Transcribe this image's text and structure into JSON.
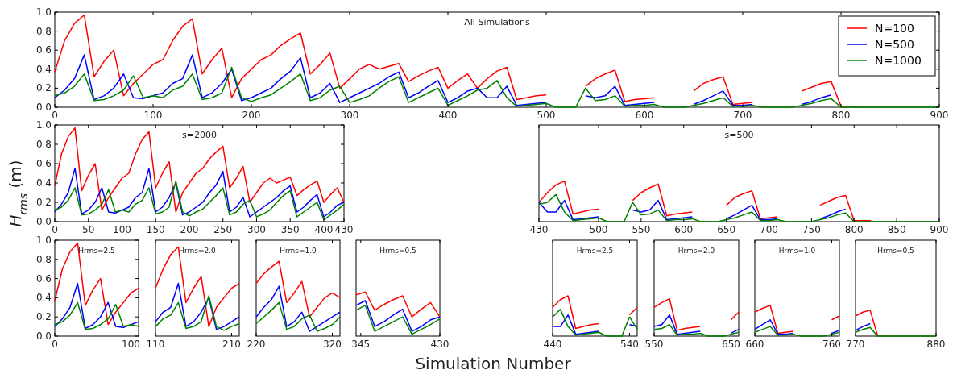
{
  "chart_data": [
    {
      "type": "line",
      "title": "All Simulations",
      "legend": "top right",
      "xlim": [
        0,
        900
      ],
      "ylim": [
        0,
        1
      ],
      "xticks": [
        0,
        100,
        200,
        300,
        400,
        500,
        600,
        700,
        800,
        900
      ],
      "yticks": [
        {
          "value": 0,
          "label": "0.0"
        },
        {
          "value": 0.2,
          "label": "0.2"
        },
        {
          "value": 0.4,
          "label": "0.4"
        },
        {
          "value": 0.6,
          "label": "0.6"
        },
        {
          "value": 0.8,
          "label": "0.8"
        },
        {
          "value": 1,
          "label": "1.0"
        }
      ],
      "x": [
        0,
        10,
        20,
        30,
        40,
        50,
        60,
        70,
        80,
        90,
        100,
        110,
        120,
        130,
        140,
        150,
        160,
        170,
        180,
        190,
        200,
        210,
        220,
        230,
        240,
        250,
        260,
        270,
        280,
        290,
        300,
        310,
        320,
        330,
        340,
        350,
        360,
        370,
        380,
        390,
        400,
        410,
        420,
        430,
        440,
        450,
        460,
        470,
        480,
        490,
        500,
        510,
        520,
        530,
        540,
        550,
        560,
        570,
        580,
        590,
        600,
        610,
        620,
        630,
        640,
        650,
        660,
        670,
        680,
        690,
        700,
        710,
        720,
        730,
        740,
        750,
        760,
        770,
        780,
        790,
        800,
        810,
        820,
        830,
        840,
        850,
        860,
        870,
        880,
        890,
        900
      ],
      "series": [
        {
          "name": "N=100",
          "color": "#ff0000",
          "values": [
            0.37,
            0.7,
            0.88,
            0.97,
            0.32,
            0.48,
            0.6,
            0.12,
            0.25,
            0.35,
            0.45,
            0.5,
            0.7,
            0.85,
            0.93,
            0.35,
            0.5,
            0.62,
            0.1,
            0.3,
            0.4,
            0.5,
            0.55,
            0.65,
            0.72,
            0.78,
            0.35,
            0.45,
            0.57,
            0.2,
            0.3,
            0.4,
            0.45,
            0.4,
            0.43,
            0.46,
            0.27,
            0.33,
            0.38,
            0.42,
            0.2,
            0.28,
            0.35,
            0.2,
            0.3,
            0.38,
            0.42,
            0.08,
            0.1,
            0.12,
            0.13,
            null,
            null,
            null,
            0.22,
            0.3,
            0.35,
            0.39,
            0.06,
            0.08,
            0.09,
            0.1,
            null,
            null,
            null,
            0.17,
            0.25,
            0.29,
            0.32,
            0.03,
            0.04,
            0.05,
            null,
            null,
            null,
            null,
            0.17,
            0.21,
            0.25,
            0.27,
            0.01,
            0.01,
            0.01,
            null,
            null,
            null,
            null,
            null,
            null,
            null,
            null
          ]
        },
        {
          "name": "N=500",
          "color": "#0000ff",
          "values": [
            0.1,
            0.18,
            0.3,
            0.55,
            0.08,
            0.12,
            0.2,
            0.35,
            0.1,
            0.09,
            0.12,
            0.15,
            0.25,
            0.3,
            0.55,
            0.1,
            0.15,
            0.25,
            0.4,
            0.07,
            0.1,
            0.15,
            0.2,
            0.3,
            0.38,
            0.52,
            0.1,
            0.15,
            0.25,
            0.05,
            0.1,
            0.15,
            0.2,
            0.25,
            0.32,
            0.37,
            0.1,
            0.15,
            0.22,
            0.28,
            0.05,
            0.1,
            0.17,
            0.2,
            0.1,
            0.1,
            0.22,
            0.02,
            0.03,
            0.04,
            0.05,
            null,
            null,
            null,
            0.12,
            0.1,
            0.12,
            0.22,
            0.02,
            0.03,
            0.04,
            0.05,
            null,
            null,
            null,
            0.03,
            0.07,
            0.12,
            0.17,
            0.02,
            0.02,
            0.03,
            null,
            null,
            null,
            null,
            0.03,
            0.06,
            0.1,
            0.13,
            null,
            null,
            null,
            null,
            null,
            null,
            null,
            null,
            null,
            null,
            null
          ]
        },
        {
          "name": "N=1000",
          "color": "#008000",
          "values": [
            0.12,
            0.15,
            0.22,
            0.35,
            0.07,
            0.08,
            0.12,
            0.18,
            0.33,
            0.1,
            0.12,
            0.1,
            0.18,
            0.22,
            0.35,
            0.08,
            0.1,
            0.15,
            0.42,
            0.1,
            0.06,
            0.1,
            0.13,
            0.2,
            0.27,
            0.35,
            0.07,
            0.1,
            0.18,
            0.22,
            0.05,
            0.08,
            0.12,
            0.2,
            0.27,
            0.32,
            0.05,
            0.1,
            0.15,
            0.2,
            0.02,
            0.07,
            0.12,
            0.18,
            0.2,
            0.28,
            0.1,
            0.01,
            0.02,
            0.03,
            0.04,
            0,
            0,
            0,
            0.2,
            0.07,
            0.08,
            0.12,
            0.01,
            0.02,
            0.02,
            0.03,
            0,
            0,
            0,
            0.02,
            0.04,
            0.07,
            0.1,
            0.01,
            0.01,
            0.02,
            0,
            0,
            0,
            0,
            0.02,
            0.04,
            0.07,
            0.09,
            0,
            0,
            0,
            0,
            0,
            0,
            0,
            0,
            0,
            0,
            0
          ]
        }
      ]
    },
    {
      "type": "line",
      "title": "s=2000",
      "ylabel": "H$_{rms}$ (m)",
      "xlim": [
        0,
        430
      ],
      "ylim": [
        0,
        1
      ],
      "xticks": [
        0,
        50,
        100,
        150,
        200,
        250,
        300,
        350,
        400,
        430
      ],
      "yticks": [
        {
          "value": 0,
          "label": "0.0"
        },
        {
          "value": 0.2,
          "label": "0.2"
        },
        {
          "value": 0.4,
          "label": "0.4"
        },
        {
          "value": 0.6,
          "label": "0.6"
        },
        {
          "value": 0.8,
          "label": "0.8"
        },
        {
          "value": 1,
          "label": "1.0"
        }
      ],
      "x": [
        0,
        10,
        20,
        30,
        40,
        50,
        60,
        70,
        80,
        90,
        100,
        110,
        120,
        130,
        140,
        150,
        160,
        170,
        180,
        190,
        200,
        210,
        220,
        230,
        240,
        250,
        260,
        270,
        280,
        290,
        300,
        310,
        320,
        330,
        340,
        350,
        360,
        370,
        380,
        390,
        400,
        410,
        420,
        430
      ],
      "series": [
        {
          "color": "#ff0000",
          "values": [
            0.37,
            0.7,
            0.88,
            0.97,
            0.32,
            0.48,
            0.6,
            0.12,
            0.25,
            0.35,
            0.45,
            0.5,
            0.7,
            0.85,
            0.93,
            0.35,
            0.5,
            0.62,
            0.1,
            0.3,
            0.4,
            0.5,
            0.55,
            0.65,
            0.72,
            0.78,
            0.35,
            0.45,
            0.57,
            0.2,
            0.3,
            0.4,
            0.45,
            0.4,
            0.43,
            0.46,
            0.27,
            0.33,
            0.38,
            0.42,
            0.2,
            0.28,
            0.35,
            0.2
          ]
        },
        {
          "color": "#0000ff",
          "values": [
            0.1,
            0.18,
            0.3,
            0.55,
            0.08,
            0.12,
            0.2,
            0.35,
            0.1,
            0.09,
            0.12,
            0.15,
            0.25,
            0.3,
            0.55,
            0.1,
            0.15,
            0.25,
            0.4,
            0.07,
            0.1,
            0.15,
            0.2,
            0.3,
            0.38,
            0.52,
            0.1,
            0.15,
            0.25,
            0.05,
            0.1,
            0.15,
            0.2,
            0.25,
            0.32,
            0.37,
            0.1,
            0.15,
            0.22,
            0.28,
            0.05,
            0.1,
            0.17,
            0.2
          ]
        },
        {
          "color": "#008000",
          "values": [
            0.12,
            0.15,
            0.22,
            0.35,
            0.07,
            0.08,
            0.12,
            0.18,
            0.33,
            0.1,
            0.12,
            0.1,
            0.18,
            0.22,
            0.35,
            0.08,
            0.1,
            0.15,
            0.42,
            0.1,
            0.06,
            0.1,
            0.13,
            0.2,
            0.27,
            0.35,
            0.07,
            0.1,
            0.18,
            0.22,
            0.05,
            0.08,
            0.12,
            0.2,
            0.27,
            0.32,
            0.05,
            0.1,
            0.15,
            0.2,
            0.02,
            0.07,
            0.12,
            0.18
          ]
        }
      ]
    },
    {
      "type": "line",
      "title": "s=500",
      "tick_labels": "x",
      "xlim": [
        430,
        900
      ],
      "ylim": [
        0,
        1
      ],
      "xticks": [
        430,
        500,
        550,
        600,
        650,
        700,
        750,
        800,
        850,
        900
      ],
      "x": [
        430,
        440,
        450,
        460,
        470,
        480,
        490,
        500,
        510,
        520,
        530,
        540,
        550,
        560,
        570,
        580,
        590,
        600,
        610,
        620,
        630,
        640,
        650,
        660,
        670,
        680,
        690,
        700,
        710,
        720,
        730,
        740,
        750,
        760,
        770,
        780,
        790,
        800,
        810,
        820,
        830,
        840,
        850,
        860,
        870,
        880,
        890,
        900
      ],
      "series": [
        {
          "color": "#ff0000",
          "values": [
            0.2,
            0.3,
            0.38,
            0.42,
            0.08,
            0.1,
            0.12,
            0.13,
            null,
            null,
            null,
            0.22,
            0.3,
            0.35,
            0.39,
            0.06,
            0.08,
            0.09,
            0.1,
            null,
            null,
            null,
            0.17,
            0.25,
            0.29,
            0.32,
            0.03,
            0.04,
            0.05,
            null,
            null,
            null,
            null,
            0.17,
            0.21,
            0.25,
            0.27,
            0.01,
            0.01,
            0.01,
            null,
            null,
            null,
            null,
            null,
            null,
            null,
            null
          ]
        },
        {
          "color": "#0000ff",
          "values": [
            0.2,
            0.1,
            0.1,
            0.22,
            0.02,
            0.03,
            0.04,
            0.05,
            null,
            null,
            null,
            0.12,
            0.1,
            0.12,
            0.22,
            0.02,
            0.03,
            0.04,
            0.05,
            null,
            null,
            null,
            0.03,
            0.07,
            0.12,
            0.17,
            0.02,
            0.02,
            0.03,
            null,
            null,
            null,
            null,
            0.03,
            0.06,
            0.1,
            0.13,
            null,
            null,
            null,
            null,
            null,
            null,
            null,
            null,
            null,
            null,
            null
          ]
        },
        {
          "color": "#008000",
          "values": [
            0.18,
            0.2,
            0.28,
            0.1,
            0.01,
            0.02,
            0.03,
            0.04,
            0,
            0,
            0,
            0.2,
            0.07,
            0.08,
            0.12,
            0.01,
            0.02,
            0.02,
            0.03,
            0,
            0,
            0,
            0.02,
            0.04,
            0.07,
            0.1,
            0.01,
            0.01,
            0.02,
            0,
            0,
            0,
            0,
            0.02,
            0.04,
            0.07,
            0.09,
            0,
            0,
            0,
            0,
            0,
            0,
            0,
            0,
            0,
            0,
            0
          ]
        }
      ]
    },
    {
      "type": "line",
      "title": "Hrms=2.5",
      "xlim": [
        0,
        110
      ],
      "ylim": [
        0,
        1
      ],
      "xticks": [
        0,
        100
      ],
      "yticks": [
        {
          "value": 0,
          "label": "0.0"
        },
        {
          "value": 0.2,
          "label": "0.2"
        },
        {
          "value": 0.4,
          "label": "0.4"
        },
        {
          "value": 0.6,
          "label": "0.6"
        },
        {
          "value": 0.8,
          "label": "0.8"
        },
        {
          "value": 1,
          "label": "1.0"
        }
      ],
      "x": [
        0,
        10,
        20,
        30,
        40,
        50,
        60,
        70,
        80,
        90,
        100,
        110
      ],
      "series": [
        {
          "color": "#ff0000",
          "values": [
            0.37,
            0.7,
            0.88,
            0.97,
            0.32,
            0.48,
            0.6,
            0.12,
            0.25,
            0.35,
            0.45,
            0.5
          ]
        },
        {
          "color": "#0000ff",
          "values": [
            0.1,
            0.18,
            0.3,
            0.55,
            0.08,
            0.12,
            0.2,
            0.35,
            0.1,
            0.09,
            0.12,
            0.15
          ]
        },
        {
          "color": "#008000",
          "values": [
            0.12,
            0.15,
            0.22,
            0.35,
            0.07,
            0.08,
            0.12,
            0.18,
            0.33,
            0.1,
            0.12,
            0.1
          ]
        }
      ]
    },
    {
      "type": "line",
      "title": "Hrms=2.0",
      "tick_labels": "x",
      "xlim": [
        110,
        220
      ],
      "ylim": [
        0,
        1
      ],
      "xticks": [
        110,
        210
      ],
      "x": [
        110,
        120,
        130,
        140,
        150,
        160,
        170,
        180,
        190,
        200,
        210,
        220
      ],
      "series": [
        {
          "color": "#ff0000",
          "values": [
            0.5,
            0.7,
            0.85,
            0.93,
            0.35,
            0.5,
            0.62,
            0.1,
            0.3,
            0.4,
            0.5,
            0.55
          ]
        },
        {
          "color": "#0000ff",
          "values": [
            0.15,
            0.25,
            0.3,
            0.55,
            0.1,
            0.15,
            0.25,
            0.4,
            0.07,
            0.1,
            0.15,
            0.2
          ]
        },
        {
          "color": "#008000",
          "values": [
            0.1,
            0.18,
            0.22,
            0.35,
            0.08,
            0.1,
            0.15,
            0.42,
            0.1,
            0.06,
            0.1,
            0.13
          ]
        }
      ]
    },
    {
      "type": "line",
      "title": "Hrms=1.0",
      "tick_labels": "x",
      "xlim": [
        220,
        330
      ],
      "ylim": [
        0,
        1
      ],
      "xticks": [
        220,
        320
      ],
      "x": [
        220,
        230,
        240,
        250,
        260,
        270,
        280,
        290,
        300,
        310,
        320,
        330
      ],
      "series": [
        {
          "color": "#ff0000",
          "values": [
            0.55,
            0.65,
            0.72,
            0.78,
            0.35,
            0.45,
            0.57,
            0.2,
            0.3,
            0.4,
            0.45,
            0.4
          ]
        },
        {
          "color": "#0000ff",
          "values": [
            0.2,
            0.3,
            0.38,
            0.52,
            0.1,
            0.15,
            0.25,
            0.05,
            0.1,
            0.15,
            0.2,
            0.25
          ]
        },
        {
          "color": "#008000",
          "values": [
            0.13,
            0.2,
            0.27,
            0.35,
            0.07,
            0.1,
            0.18,
            0.22,
            0.05,
            0.08,
            0.12,
            0.2
          ]
        }
      ]
    },
    {
      "type": "line",
      "title": "Hrms=0.5",
      "xlabel": "Simulation Number",
      "tick_labels": "x",
      "xlim": [
        340,
        430
      ],
      "ylim": [
        0,
        1
      ],
      "xticks": [
        345,
        430
      ],
      "x": [
        340,
        350,
        360,
        370,
        380,
        390,
        400,
        410,
        420,
        430
      ],
      "series": [
        {
          "color": "#ff0000",
          "values": [
            0.43,
            0.46,
            0.27,
            0.33,
            0.38,
            0.42,
            0.2,
            0.28,
            0.35,
            0.2
          ]
        },
        {
          "color": "#0000ff",
          "values": [
            0.32,
            0.37,
            0.1,
            0.15,
            0.22,
            0.28,
            0.05,
            0.1,
            0.17,
            0.2
          ]
        },
        {
          "color": "#008000",
          "values": [
            0.27,
            0.32,
            0.05,
            0.1,
            0.15,
            0.2,
            0.02,
            0.07,
            0.12,
            0.18
          ]
        }
      ]
    },
    {
      "type": "line",
      "title": "Hrms=2.5",
      "tick_labels": "x",
      "xlim": [
        440,
        550
      ],
      "ylim": [
        0,
        1
      ],
      "xticks": [
        440,
        540
      ],
      "x": [
        440,
        450,
        460,
        470,
        480,
        490,
        500,
        510,
        520,
        530,
        540,
        550
      ],
      "series": [
        {
          "color": "#ff0000",
          "values": [
            0.3,
            0.38,
            0.42,
            0.08,
            0.1,
            0.12,
            0.13,
            null,
            null,
            null,
            0.22,
            0.3
          ]
        },
        {
          "color": "#0000ff",
          "values": [
            0.1,
            0.1,
            0.22,
            0.02,
            0.03,
            0.04,
            0.05,
            null,
            null,
            null,
            0.12,
            0.1
          ]
        },
        {
          "color": "#008000",
          "values": [
            0.2,
            0.28,
            0.1,
            0.01,
            0.02,
            0.03,
            0.04,
            0,
            0,
            0,
            0.2,
            0.07
          ]
        }
      ]
    },
    {
      "type": "line",
      "title": "Hrms=2.0",
      "tick_labels": "x",
      "xlim": [
        550,
        660
      ],
      "ylim": [
        0,
        1
      ],
      "xticks": [
        550,
        650
      ],
      "x": [
        550,
        560,
        570,
        580,
        590,
        600,
        610,
        620,
        630,
        640,
        650,
        660
      ],
      "series": [
        {
          "color": "#ff0000",
          "values": [
            0.3,
            0.35,
            0.39,
            0.06,
            0.08,
            0.09,
            0.1,
            null,
            null,
            null,
            0.17,
            0.25
          ]
        },
        {
          "color": "#0000ff",
          "values": [
            0.1,
            0.12,
            0.22,
            0.02,
            0.03,
            0.04,
            0.05,
            null,
            null,
            null,
            0.03,
            0.07
          ]
        },
        {
          "color": "#008000",
          "values": [
            0.07,
            0.08,
            0.12,
            0.01,
            0.02,
            0.02,
            0.03,
            0,
            0,
            0,
            0.02,
            0.04
          ]
        }
      ]
    },
    {
      "type": "line",
      "title": "Hrms=1.0",
      "tick_labels": "x",
      "xlim": [
        660,
        770
      ],
      "ylim": [
        0,
        1
      ],
      "xticks": [
        660,
        760
      ],
      "x": [
        660,
        670,
        680,
        690,
        700,
        710,
        720,
        730,
        740,
        750,
        760,
        770
      ],
      "series": [
        {
          "color": "#ff0000",
          "values": [
            0.25,
            0.29,
            0.32,
            0.03,
            0.04,
            0.05,
            null,
            null,
            null,
            null,
            0.17,
            0.21
          ]
        },
        {
          "color": "#0000ff",
          "values": [
            0.07,
            0.12,
            0.17,
            0.02,
            0.02,
            0.03,
            null,
            null,
            null,
            null,
            0.03,
            0.06
          ]
        },
        {
          "color": "#008000",
          "values": [
            0.04,
            0.07,
            0.1,
            0.01,
            0.01,
            0.02,
            0,
            0,
            0,
            0,
            0.02,
            0.04
          ]
        }
      ]
    },
    {
      "type": "line",
      "title": "Hrms=0.5",
      "tick_labels": "x",
      "xlim": [
        770,
        880
      ],
      "ylim": [
        0,
        1
      ],
      "xticks": [
        770,
        880
      ],
      "x": [
        770,
        780,
        790,
        800,
        810,
        820,
        830,
        840,
        850,
        860,
        870,
        880
      ],
      "series": [
        {
          "color": "#ff0000",
          "values": [
            0.21,
            0.25,
            0.27,
            0.01,
            0.01,
            0.01,
            null,
            null,
            null,
            null,
            null,
            null
          ]
        },
        {
          "color": "#0000ff",
          "values": [
            0.06,
            0.1,
            0.13,
            null,
            null,
            null,
            null,
            null,
            null,
            null,
            null,
            null
          ]
        },
        {
          "color": "#008000",
          "values": [
            0.04,
            0.07,
            0.09,
            0,
            0,
            0,
            0,
            0,
            0,
            0,
            0,
            0
          ]
        }
      ]
    }
  ]
}
